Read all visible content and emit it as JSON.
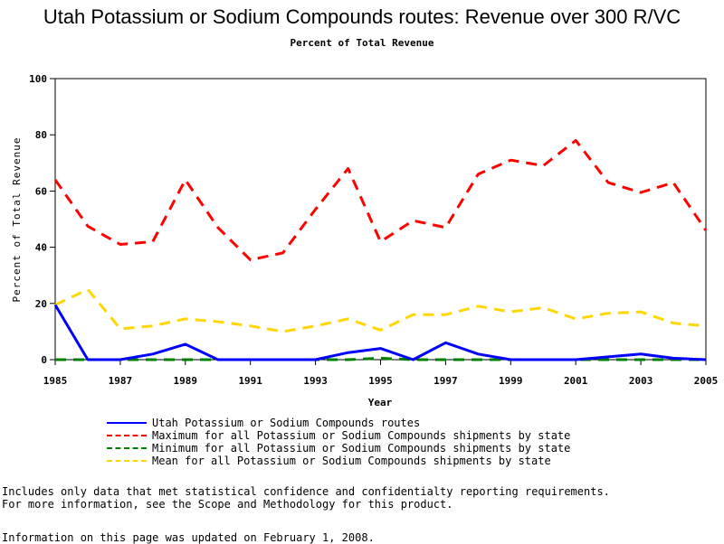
{
  "page": {
    "title": "Utah Potassium or Sodium Compounds routes: Revenue over 300 R/VC",
    "subtitle": "Percent of Total Revenue",
    "note_line1": "Includes only data that met statistical confidence and confidentialty reporting requirements.",
    "note_line2": "For more information, see the Scope and Methodology for this product.",
    "updated": "Information on this page was updated on February 1, 2008."
  },
  "chart_data": {
    "type": "line",
    "title": "Utah Potassium or Sodium Compounds routes: Revenue over 300 R/VC",
    "subtitle": "Percent of Total Revenue",
    "xlabel": "Year",
    "ylabel": "Percent of Total Revenue",
    "xlim": [
      1985,
      2005
    ],
    "ylim": [
      0,
      100
    ],
    "x_ticks": [
      1985,
      1987,
      1989,
      1991,
      1993,
      1995,
      1997,
      1999,
      2001,
      2003,
      2005
    ],
    "y_ticks": [
      0,
      20,
      40,
      60,
      80,
      100
    ],
    "grid": false,
    "legend_position": "bottom",
    "x": [
      1985,
      1986,
      1987,
      1988,
      1989,
      1990,
      1991,
      1992,
      1993,
      1994,
      1995,
      1996,
      1997,
      1998,
      1999,
      2000,
      2001,
      2002,
      2003,
      2004,
      2005
    ],
    "series": [
      {
        "name": "Utah Potassium or Sodium Compounds routes",
        "color": "#0000ff",
        "style": "solid",
        "values": [
          19.5,
          0,
          0,
          2,
          5.5,
          0,
          0,
          0,
          0,
          2.5,
          4,
          0,
          6,
          2,
          0,
          0,
          0,
          1,
          2,
          0.5,
          0
        ]
      },
      {
        "name": "Maximum for all Potassium or Sodium Compounds shipments by state",
        "color": "#ff0000",
        "style": "dashed",
        "values": [
          64,
          47.5,
          41,
          42,
          64,
          47,
          35.5,
          38,
          53.5,
          68,
          42,
          49.5,
          47,
          66,
          71,
          69,
          78,
          63,
          59.5,
          63,
          46
        ]
      },
      {
        "name": "Minimum for all Potassium or Sodium Compounds shipments by state",
        "color": "#008000",
        "style": "dashed",
        "values": [
          0,
          0,
          0,
          0,
          0,
          0,
          0,
          0,
          0,
          0,
          0.5,
          0,
          0,
          0,
          0,
          0,
          0,
          0,
          0,
          0,
          0
        ]
      },
      {
        "name": "Mean for all Potassium or Sodium Compounds shipments by state",
        "color": "#ffd700",
        "style": "dashed",
        "values": [
          19.5,
          25,
          11,
          12,
          14.5,
          13.5,
          12,
          10,
          12,
          14.5,
          10.5,
          16,
          16,
          19,
          17,
          18.5,
          14.5,
          16.5,
          17,
          13,
          12
        ]
      }
    ]
  }
}
